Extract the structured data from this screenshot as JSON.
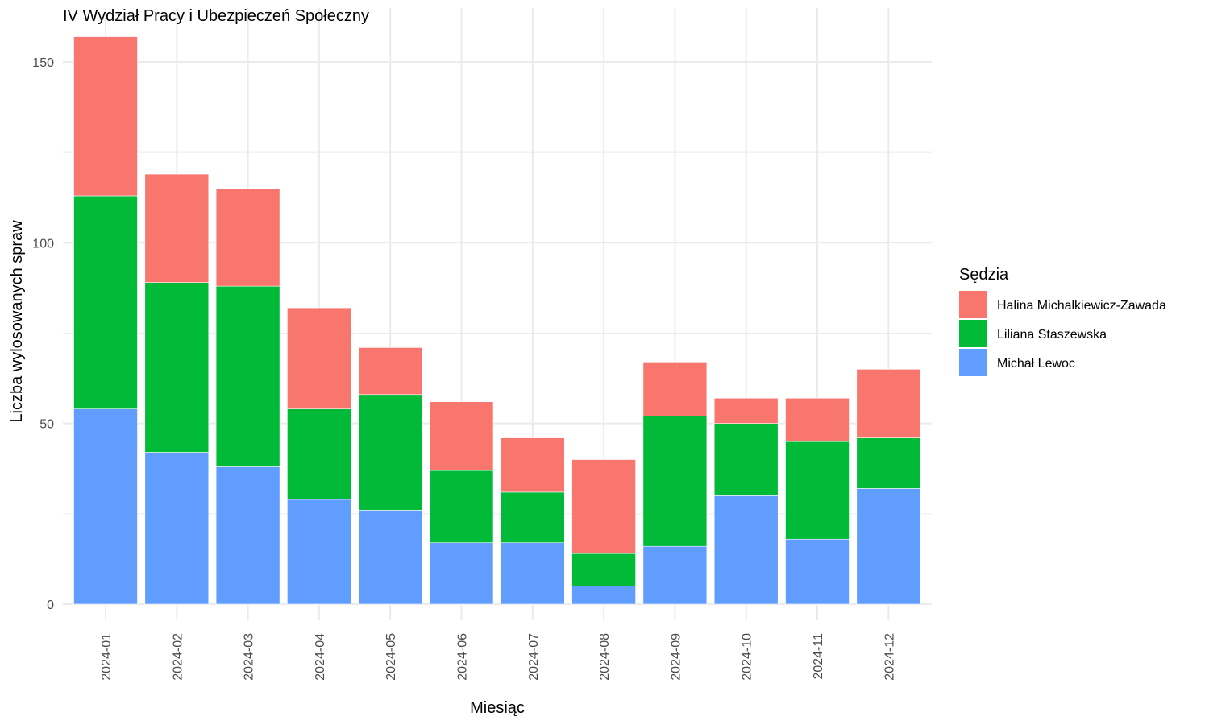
{
  "chart_data": {
    "type": "bar",
    "stacked": true,
    "title": "IV Wydział Pracy i Ubezpieczeń Społeczny",
    "xlabel": "Miesiąc",
    "ylabel": "Liczba wylosowanych spraw",
    "categories": [
      "2024-01",
      "2024-02",
      "2024-03",
      "2024-04",
      "2024-05",
      "2024-06",
      "2024-07",
      "2024-08",
      "2024-09",
      "2024-10",
      "2024-11",
      "2024-12"
    ],
    "series": [
      {
        "name": "Michał Lewoc",
        "color": "#619CFF",
        "values": [
          54,
          42,
          38,
          29,
          26,
          17,
          17,
          5,
          16,
          30,
          18,
          32
        ]
      },
      {
        "name": "Liliana Staszewska",
        "color": "#00BA38",
        "values": [
          59,
          47,
          50,
          25,
          32,
          20,
          14,
          9,
          36,
          20,
          27,
          14
        ]
      },
      {
        "name": "Halina Michalkiewicz-Zawada",
        "color": "#F8766D",
        "values": [
          44,
          30,
          27,
          28,
          13,
          19,
          15,
          26,
          15,
          7,
          12,
          19
        ]
      }
    ],
    "ylim": [
      0,
      160
    ],
    "yticks": [
      0,
      50,
      100,
      150
    ],
    "grid": true,
    "legend": {
      "title": "Sędzia",
      "position": "right",
      "order": [
        "Halina Michalkiewicz-Zawada",
        "Liliana Staszewska",
        "Michał Lewoc"
      ]
    }
  }
}
